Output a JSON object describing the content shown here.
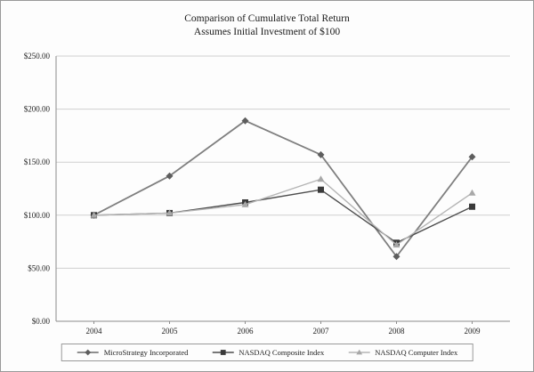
{
  "title": {
    "line1": "Comparison of Cumulative Total Return",
    "line2": "Assumes Initial Investment of $100"
  },
  "chart_data": {
    "type": "line",
    "categories": [
      "2004",
      "2005",
      "2006",
      "2007",
      "2008",
      "2009"
    ],
    "series": [
      {
        "name": "MicroStrategy Incorporated",
        "marker": "diamond",
        "color": "#7f7f7f",
        "marker_color": "#5e5e5e",
        "line_width": 1.8,
        "values": [
          100,
          137,
          189,
          157,
          61,
          155
        ]
      },
      {
        "name": "NASDAQ Composite Index",
        "marker": "square",
        "color": "#4d4d4d",
        "marker_color": "#3a3a3a",
        "line_width": 1.4,
        "values": [
          100,
          102,
          112,
          124,
          74,
          108
        ]
      },
      {
        "name": "NASDAQ Computer Index",
        "marker": "triangle",
        "color": "#b5b5b5",
        "marker_color": "#a8a8a8",
        "line_width": 1.4,
        "values": [
          100,
          102,
          110,
          134,
          72,
          121
        ]
      }
    ],
    "ylim": [
      0,
      250
    ],
    "ytick_step": 50,
    "ytick_labels": [
      "$0.00",
      "$50.00",
      "$100.00",
      "$150.00",
      "$200.00",
      "$250.00"
    ],
    "grid": true,
    "grid_color": "#cfcfcf",
    "axis_color": "#8c8c8c",
    "legend_position": "bottom"
  }
}
